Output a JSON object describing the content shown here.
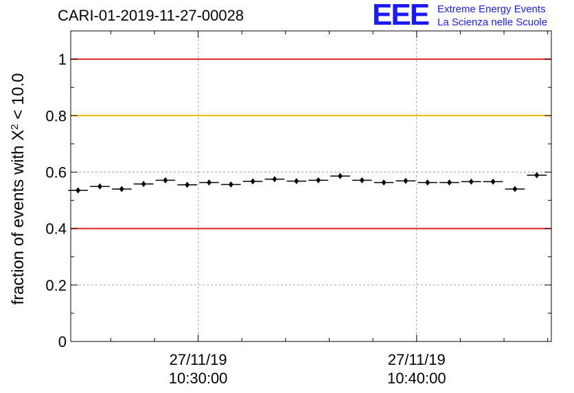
{
  "header": {
    "title": "CARI-01-2019-11-27-00028",
    "logo_text": "EEE",
    "logo_line1": "Extreme Energy Events",
    "logo_line2": "La Scienza nelle Scuole"
  },
  "chart_data": {
    "type": "scatter",
    "title": "CARI-01-2019-11-27-00028",
    "ylabel": "fraction of events with Χ² < 10.0",
    "ylabel_parts": {
      "prefix": "fraction of events with Χ",
      "sup": "2",
      "suffix": " < 10.0"
    },
    "ylim": [
      0,
      1.1
    ],
    "yticks": [
      {
        "v": 0,
        "label": "0"
      },
      {
        "v": 0.2,
        "label": "0.2"
      },
      {
        "v": 0.4,
        "label": "0.4"
      },
      {
        "v": 0.6,
        "label": "0.6"
      },
      {
        "v": 0.8,
        "label": "0.8"
      },
      {
        "v": 1,
        "label": "1"
      }
    ],
    "xlim": [
      "27/11/19 10:24:10",
      "27/11/19 10:46:10"
    ],
    "xticks": [
      {
        "t": "10:30:00",
        "date": "27/11/19"
      },
      {
        "t": "10:40:00",
        "date": "27/11/19"
      }
    ],
    "x_minor_ticks": [
      "10:26:00",
      "10:28:00",
      "10:32:00",
      "10:34:00",
      "10:36:00",
      "10:38:00",
      "10:42:00",
      "10:44:00",
      "10:46:00"
    ],
    "grid": true,
    "reference_lines": [
      {
        "y": 1.0,
        "color": "#e02020"
      },
      {
        "y": 0.8,
        "color": "#f2b800"
      },
      {
        "y": 0.4,
        "color": "#e02020"
      }
    ],
    "bin_width_seconds": 60,
    "x": [
      "10:24:30",
      "10:25:30",
      "10:26:30",
      "10:27:30",
      "10:28:30",
      "10:29:30",
      "10:30:30",
      "10:31:30",
      "10:32:30",
      "10:33:30",
      "10:34:30",
      "10:35:30",
      "10:36:30",
      "10:37:30",
      "10:38:30",
      "10:39:30",
      "10:40:30",
      "10:41:30",
      "10:42:30",
      "10:43:30",
      "10:44:30",
      "10:45:30"
    ],
    "values": [
      0.535,
      0.549,
      0.54,
      0.558,
      0.571,
      0.555,
      0.563,
      0.556,
      0.567,
      0.575,
      0.568,
      0.571,
      0.586,
      0.571,
      0.563,
      0.569,
      0.563,
      0.563,
      0.566,
      0.566,
      0.54,
      0.589
    ],
    "error": [
      0.008,
      0.008,
      0.008,
      0.008,
      0.008,
      0.008,
      0.008,
      0.008,
      0.008,
      0.008,
      0.008,
      0.008,
      0.008,
      0.008,
      0.008,
      0.008,
      0.008,
      0.008,
      0.008,
      0.008,
      0.008,
      0.008
    ],
    "colors": {
      "points": "#000000",
      "grid": "#a0a0a0",
      "logo": "#1a1aff"
    }
  }
}
